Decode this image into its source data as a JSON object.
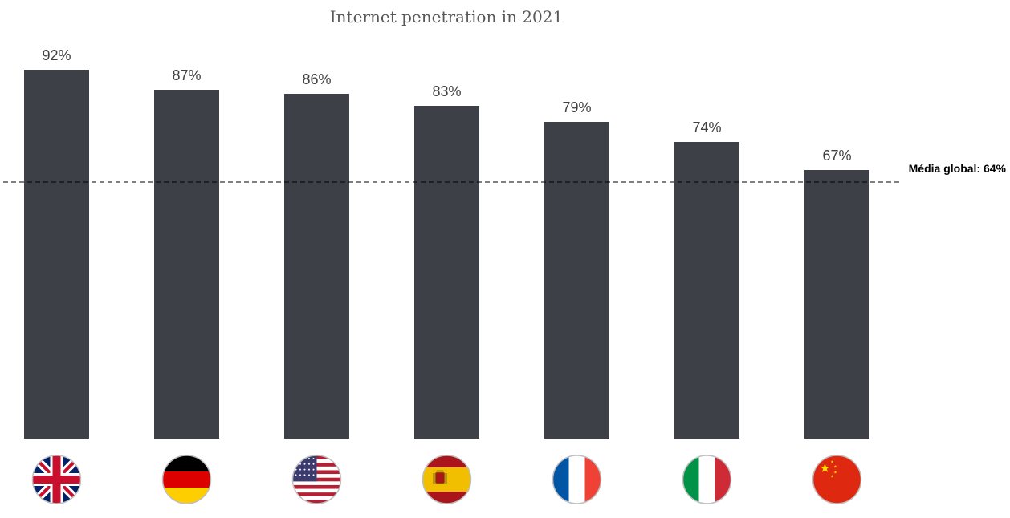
{
  "chart_data": {
    "type": "bar",
    "title": "Internet penetration in 2021",
    "xlabel": "",
    "ylabel": "",
    "categories": [
      "UK",
      "Germany",
      "USA",
      "Spain",
      "France",
      "Italy",
      "China"
    ],
    "category_icons": [
      "uk-flag-icon",
      "germany-flag-icon",
      "usa-flag-icon",
      "spain-flag-icon",
      "france-flag-icon",
      "italy-flag-icon",
      "china-flag-icon"
    ],
    "values": [
      92,
      87,
      86,
      83,
      79,
      74,
      67
    ],
    "value_labels": [
      "92%",
      "87%",
      "86%",
      "83%",
      "79%",
      "74%",
      "67%"
    ],
    "ylim": [
      0,
      100
    ],
    "grid": false,
    "legend": "none",
    "reference_line": {
      "value": 64,
      "label": "Média global: 64%",
      "style": "dashed"
    },
    "colors": {
      "bar": "#3e4047",
      "reference_line": "#000000"
    }
  }
}
